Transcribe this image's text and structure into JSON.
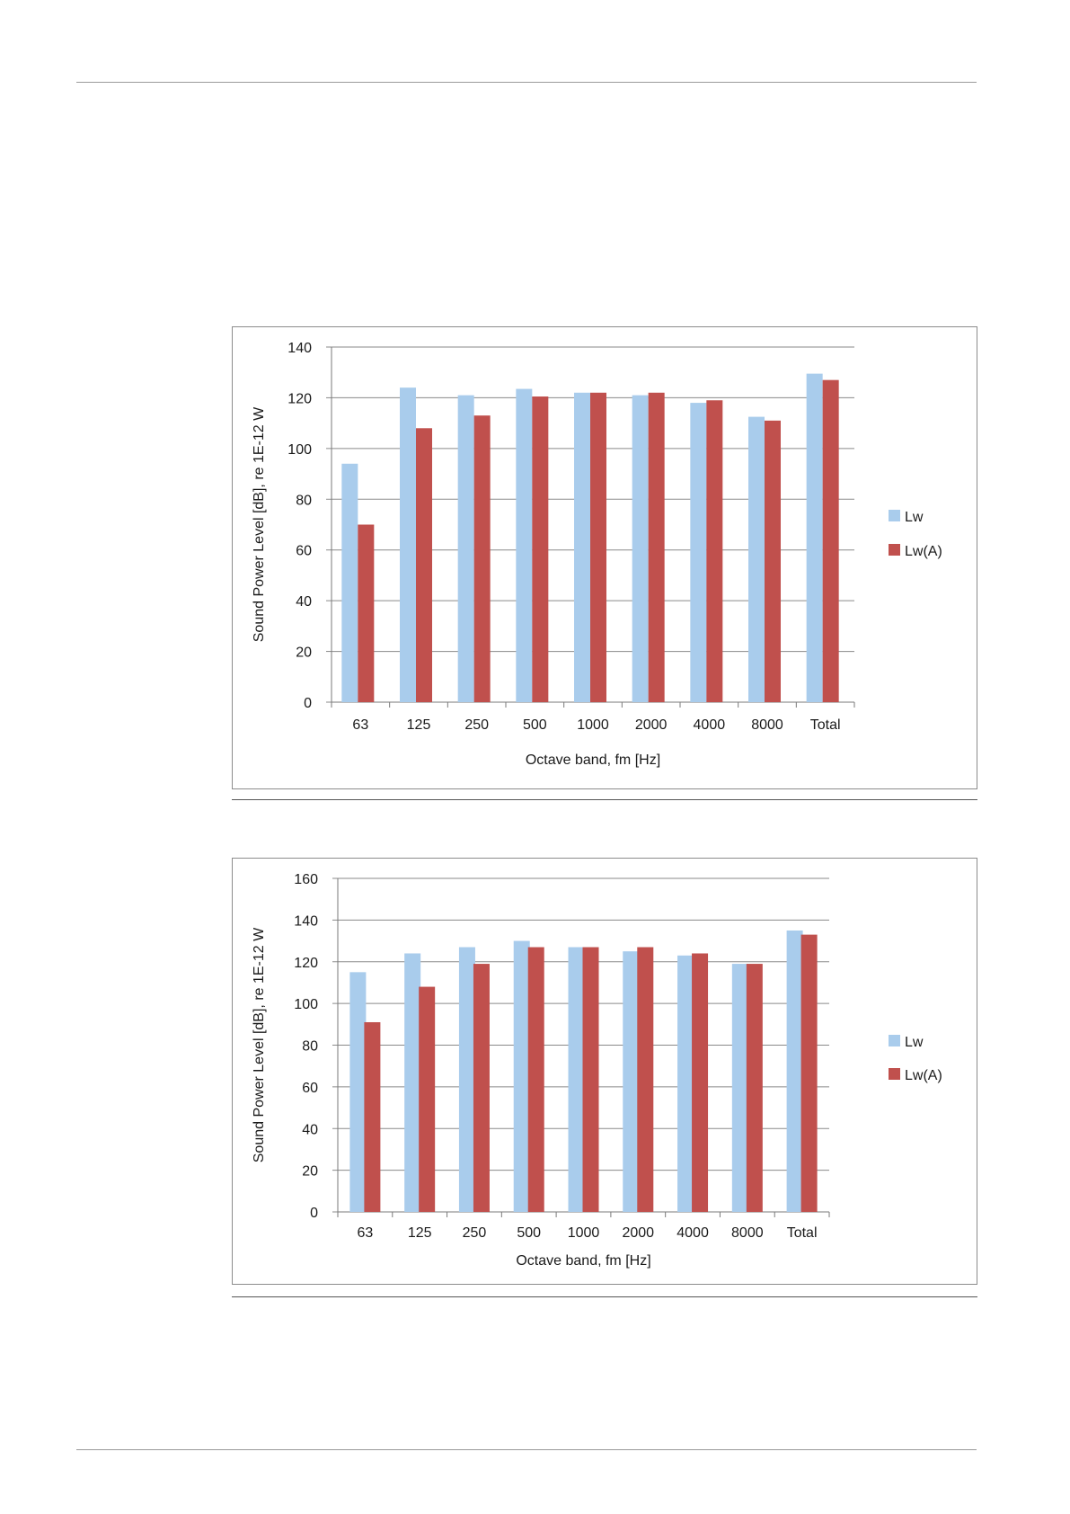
{
  "colors": {
    "lw": "#A9CCEC",
    "lwa": "#C0504D",
    "grid": "#8a8a8a"
  },
  "chart_data": [
    {
      "type": "bar",
      "title": "",
      "xlabel": "Octave band, fm [Hz]",
      "ylabel": "Sound Power Level [dB], re 1E-12 W",
      "ylim": [
        0,
        140
      ],
      "yticks": [
        0,
        20,
        40,
        60,
        80,
        100,
        120,
        140
      ],
      "categories": [
        "63",
        "125",
        "250",
        "500",
        "1000",
        "2000",
        "4000",
        "8000",
        "Total"
      ],
      "series": [
        {
          "name": "Lw",
          "values": [
            94,
            124,
            121,
            123.5,
            122,
            121,
            118,
            112.5,
            129.5
          ]
        },
        {
          "name": "Lw(A)",
          "values": [
            70,
            108,
            113,
            120.5,
            122,
            122,
            119,
            111,
            127
          ]
        }
      ],
      "legend": "right"
    },
    {
      "type": "bar",
      "title": "",
      "xlabel": "Octave band, fm [Hz]",
      "ylabel": "Sound Power Level [dB], re 1E-12 W",
      "ylim": [
        0,
        160
      ],
      "yticks": [
        0,
        20,
        40,
        60,
        80,
        100,
        120,
        140,
        160
      ],
      "categories": [
        "63",
        "125",
        "250",
        "500",
        "1000",
        "2000",
        "4000",
        "8000",
        "Total"
      ],
      "series": [
        {
          "name": "Lw",
          "values": [
            115,
            124,
            127,
            130,
            127,
            125,
            123,
            119,
            135
          ]
        },
        {
          "name": "Lw(A)",
          "values": [
            91,
            108,
            119,
            127,
            127,
            127,
            124,
            119,
            133
          ]
        }
      ],
      "legend": "right"
    }
  ]
}
